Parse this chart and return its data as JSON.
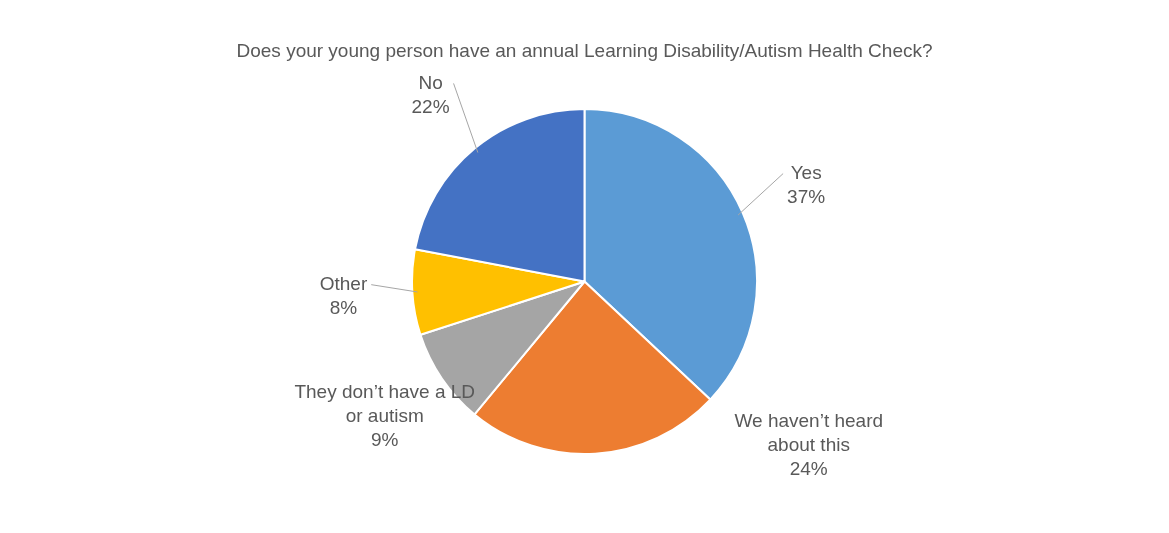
{
  "chart_data": {
    "type": "pie",
    "title": "Does your young person have an annual Learning Disability/Autism Health Check?",
    "categories": [
      "Yes",
      "We haven’t heard about this",
      "They don’t have a LD or autism",
      "Other",
      "No"
    ],
    "values": [
      37,
      24,
      9,
      8,
      22
    ],
    "colors": [
      "#5b9bd5",
      "#ed7d31",
      "#a5a5a5",
      "#ffc000",
      "#4472c4"
    ],
    "value_labels": [
      "37%",
      "24%",
      "9%",
      "8%",
      "22%"
    ],
    "legend": false
  }
}
